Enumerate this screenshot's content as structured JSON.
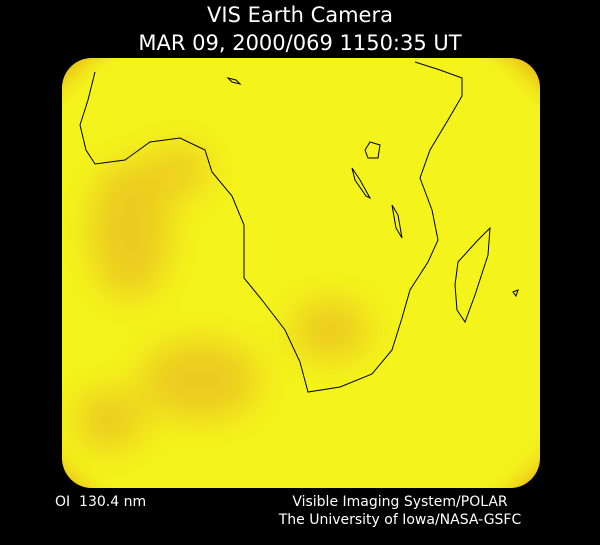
{
  "header": {
    "title": "VIS Earth Camera",
    "timestamp": "MAR 09, 2000/069 1150:35 UT"
  },
  "footer": {
    "filter": "OI  130.4 nm",
    "instrument": "Visible Imaging System/POLAR",
    "credit": "The University of Iowa/NASA-GSFC"
  }
}
